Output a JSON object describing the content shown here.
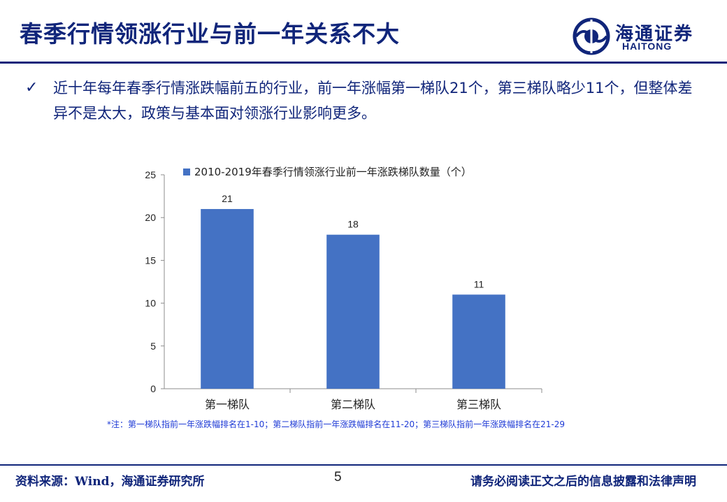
{
  "header": {
    "title": "春季行情领涨行业与前一年关系不大",
    "logo_cn": "海通证券",
    "logo_en": "HAITONG"
  },
  "bullet": {
    "icon": "check-icon",
    "text": "近十年每年春季行情涨跌幅前五的行业，前一年涨幅第一梯队21个，第三梯队略少11个，但整体差异不是太大，政策与基本面对领涨行业影响更多。"
  },
  "chart_data": {
    "type": "bar",
    "categories": [
      "第一梯队",
      "第二梯队",
      "第三梯队"
    ],
    "series": [
      {
        "name": "2010-2019年春季行情领涨行业前一年涨跌梯队数量（个）",
        "values": [
          21,
          18,
          11
        ],
        "color": "#4472c4"
      }
    ],
    "data_labels": [
      "21",
      "18",
      "11"
    ],
    "ylim": [
      0,
      25
    ],
    "yticks": [
      "0",
      "5",
      "10",
      "15",
      "20",
      "25"
    ],
    "legend_position": "top",
    "grid": false
  },
  "footnote": "*注：第一梯队指前一年涨跌幅排名在1-10；第二梯队指前一年涨跌幅排名在11-20；第三梯队指前一年涨跌幅排名在21-29",
  "footer": {
    "source": "资料来源：Wind，海通证券研究所",
    "page_number": "5",
    "disclaimer": "请务必阅读正文之后的信息披露和法律声明"
  },
  "colors": {
    "brand": "#10257a",
    "bar": "#4472c4",
    "footnote": "#1f3bd6"
  }
}
